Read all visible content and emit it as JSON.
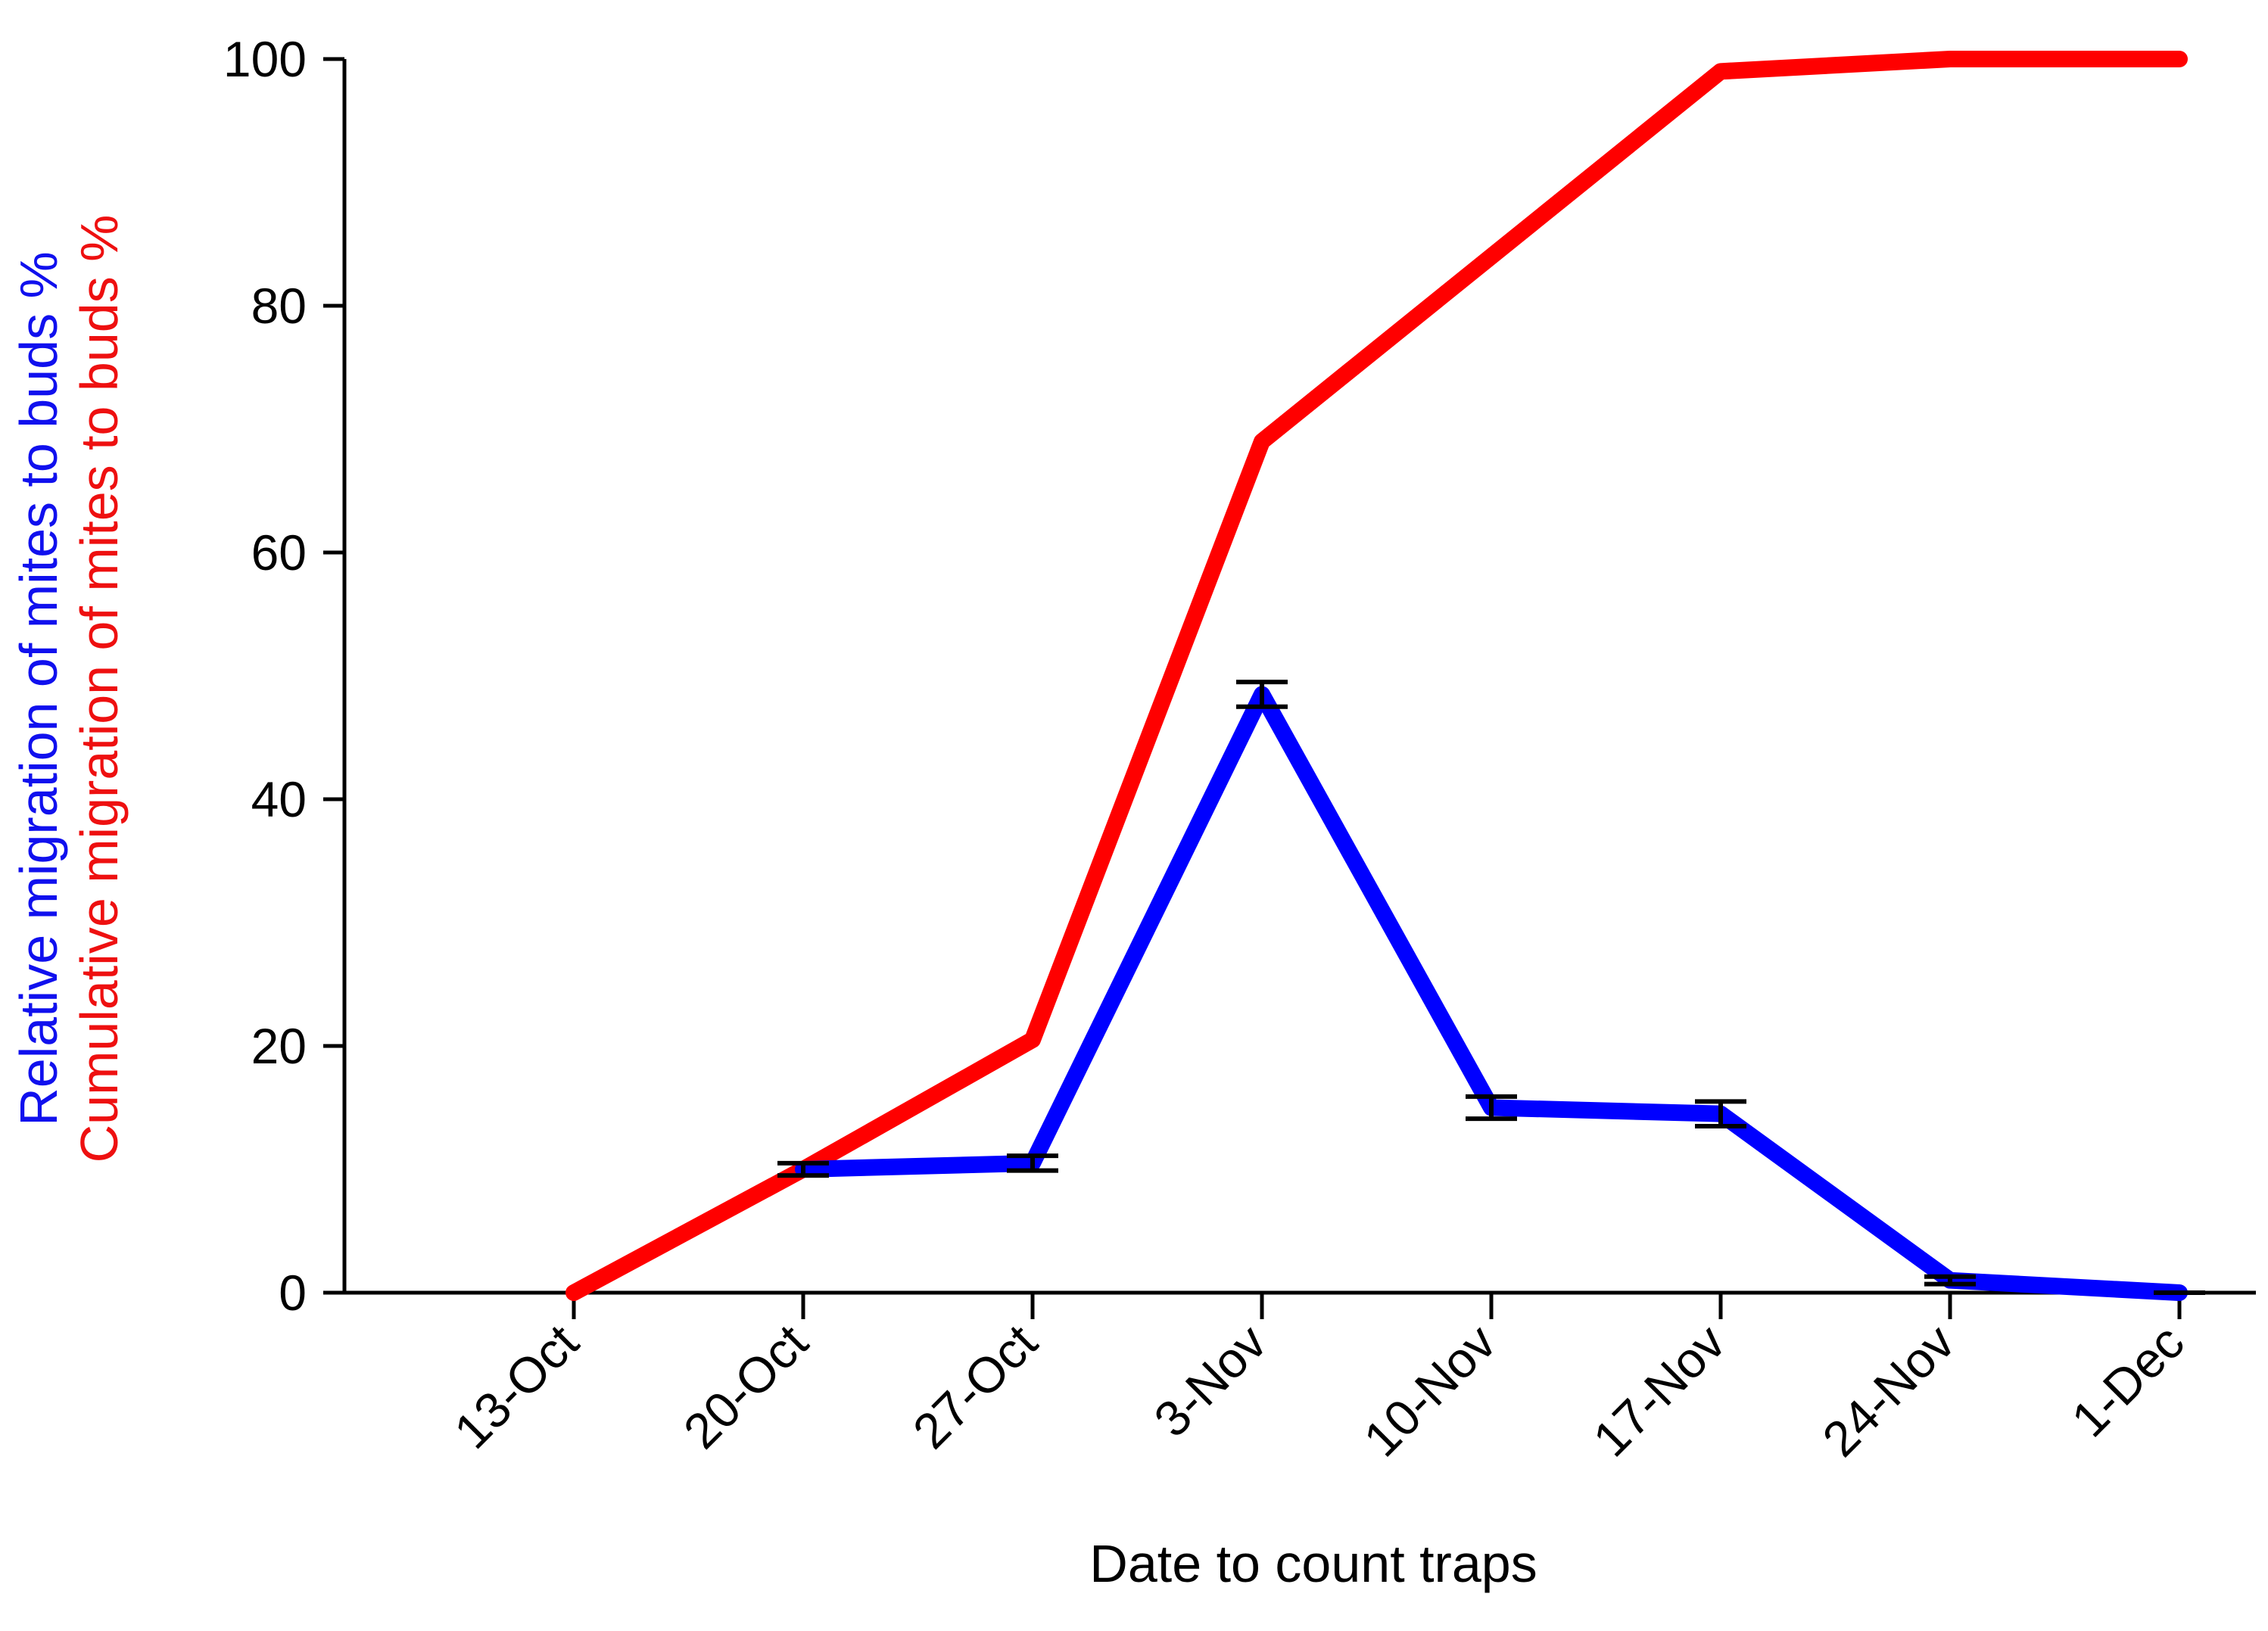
{
  "chart_data": {
    "type": "line",
    "xlabel": "Date to count traps",
    "ylabel_lines": [
      {
        "text": "Relative migration of mites to buds %",
        "color": "#1010ee"
      },
      {
        "text": "Cumulative migration of mites to buds %",
        "color": "#ee1010"
      }
    ],
    "categories": [
      "13-Oct",
      "20-Oct",
      "27-Oct",
      "3-Nov",
      "10-Nov",
      "17-Nov",
      "24-Nov",
      "1-Dec"
    ],
    "y_ticks": [
      0,
      20,
      40,
      60,
      80,
      100
    ],
    "ylim": [
      0,
      100
    ],
    "grid": false,
    "series": [
      {
        "color": "#ff0000",
        "values": [
          0,
          10,
          20.5,
          69,
          84,
          99,
          100,
          100
        ],
        "error": null
      },
      {
        "color": "#0000ff",
        "values": [
          null,
          10,
          10.5,
          48.5,
          15,
          14.5,
          1,
          0
        ],
        "error": [
          null,
          0.5,
          0.6,
          1,
          0.9,
          1,
          0.3,
          0
        ]
      }
    ]
  }
}
